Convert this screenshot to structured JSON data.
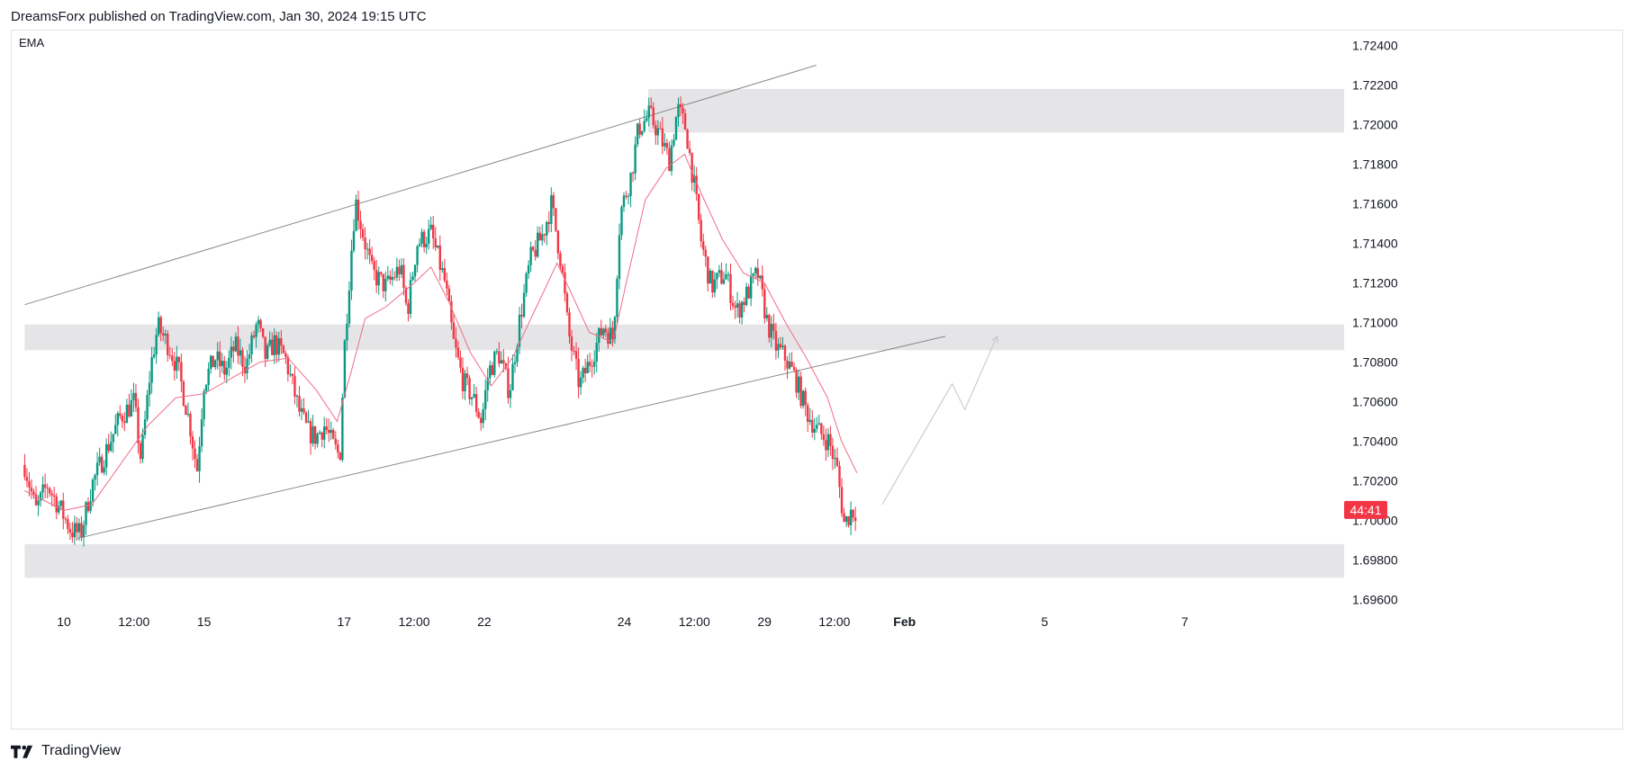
{
  "header": {
    "text": "DreamsForx published on TradingView.com, Jan 30, 2024 19:15 UTC"
  },
  "footer": {
    "brand": "TradingView",
    "logo_icon": "tradingview-logo-icon"
  },
  "colors": {
    "up": "#089981",
    "down": "#f23645",
    "ema": "#f06c88",
    "zone": "#e5e5e8",
    "trendline": "#8a8a8a",
    "projection": "#c4c4c4",
    "timer_bg": "#f23645"
  },
  "chart_data": {
    "type": "candlestick",
    "instrument": "",
    "indicator_label": "EMA",
    "y_axis": {
      "range": [
        1.695,
        1.725
      ],
      "ticks": [
        "1.72400",
        "1.72200",
        "1.72000",
        "1.71800",
        "1.71600",
        "1.71400",
        "1.71200",
        "1.71000",
        "1.70800",
        "1.70600",
        "1.70400",
        "1.70200",
        "1.70000",
        "1.69800",
        "1.69600"
      ]
    },
    "x_axis": {
      "labels": [
        {
          "text": "10",
          "t": 0.0,
          "bold": false
        },
        {
          "text": "12:00",
          "t": 0.5,
          "bold": false
        },
        {
          "text": "15",
          "t": 1.0,
          "bold": false
        },
        {
          "text": "17",
          "t": 2.0,
          "bold": false
        },
        {
          "text": "12:00",
          "t": 2.5,
          "bold": false
        },
        {
          "text": "22",
          "t": 3.0,
          "bold": false
        },
        {
          "text": "24",
          "t": 4.0,
          "bold": false
        },
        {
          "text": "12:00",
          "t": 4.5,
          "bold": false
        },
        {
          "text": "29",
          "t": 5.0,
          "bold": false
        },
        {
          "text": "12:00",
          "t": 5.5,
          "bold": false
        },
        {
          "text": "Feb",
          "t": 6.0,
          "bold": true
        },
        {
          "text": "5",
          "t": 7.0,
          "bold": false
        },
        {
          "text": "7",
          "t": 8.0,
          "bold": false
        }
      ],
      "range": [
        -0.28,
        8.0
      ]
    },
    "price_path": [
      [
        -0.28,
        1.7028
      ],
      [
        -0.2,
        1.7005
      ],
      [
        -0.12,
        1.7018
      ],
      [
        -0.02,
        1.7005
      ],
      [
        0.05,
        1.6995
      ],
      [
        0.12,
        1.6993
      ],
      [
        0.2,
        1.7018
      ],
      [
        0.3,
        1.7035
      ],
      [
        0.4,
        1.7052
      ],
      [
        0.5,
        1.706
      ],
      [
        0.55,
        1.703
      ],
      [
        0.62,
        1.7078
      ],
      [
        0.67,
        1.7098
      ],
      [
        0.75,
        1.7088
      ],
      [
        0.82,
        1.7075
      ],
      [
        0.9,
        1.7048
      ],
      [
        0.95,
        1.7025
      ],
      [
        1.0,
        1.707
      ],
      [
        1.08,
        1.7082
      ],
      [
        1.15,
        1.7075
      ],
      [
        1.22,
        1.7088
      ],
      [
        1.3,
        1.7078
      ],
      [
        1.38,
        1.71
      ],
      [
        1.44,
        1.7082
      ],
      [
        1.5,
        1.709
      ],
      [
        1.58,
        1.7082
      ],
      [
        1.68,
        1.7055
      ],
      [
        1.74,
        1.7045
      ],
      [
        1.8,
        1.7042
      ],
      [
        1.86,
        1.7048
      ],
      [
        1.92,
        1.7038
      ],
      [
        1.97,
        1.7032
      ],
      [
        2.0,
        1.7085
      ],
      [
        2.05,
        1.7135
      ],
      [
        2.08,
        1.7162
      ],
      [
        2.15,
        1.714
      ],
      [
        2.2,
        1.7125
      ],
      [
        2.3,
        1.7118
      ],
      [
        2.4,
        1.7128
      ],
      [
        2.45,
        1.7105
      ],
      [
        2.52,
        1.714
      ],
      [
        2.62,
        1.7145
      ],
      [
        2.72,
        1.712
      ],
      [
        2.78,
        1.709
      ],
      [
        2.85,
        1.707
      ],
      [
        2.92,
        1.7062
      ],
      [
        2.98,
        1.705
      ],
      [
        3.03,
        1.7075
      ],
      [
        3.1,
        1.7085
      ],
      [
        3.18,
        1.7065
      ],
      [
        3.25,
        1.71
      ],
      [
        3.33,
        1.7132
      ],
      [
        3.42,
        1.7145
      ],
      [
        3.48,
        1.716
      ],
      [
        3.55,
        1.713
      ],
      [
        3.6,
        1.7095
      ],
      [
        3.68,
        1.7068
      ],
      [
        3.78,
        1.7085
      ],
      [
        3.85,
        1.7098
      ],
      [
        3.92,
        1.7092
      ],
      [
        3.97,
        1.7155
      ],
      [
        4.05,
        1.7175
      ],
      [
        4.1,
        1.7198
      ],
      [
        4.18,
        1.7205
      ],
      [
        4.25,
        1.7195
      ],
      [
        4.32,
        1.7182
      ],
      [
        4.38,
        1.7208
      ],
      [
        4.44,
        1.7198
      ],
      [
        4.5,
        1.7168
      ],
      [
        4.55,
        1.714
      ],
      [
        4.62,
        1.7118
      ],
      [
        4.72,
        1.7125
      ],
      [
        4.8,
        1.7105
      ],
      [
        4.88,
        1.7115
      ],
      [
        4.95,
        1.7125
      ],
      [
        5.02,
        1.71
      ],
      [
        5.08,
        1.7088
      ],
      [
        5.15,
        1.7082
      ],
      [
        5.22,
        1.7072
      ],
      [
        5.3,
        1.7055
      ],
      [
        5.38,
        1.7045
      ],
      [
        5.46,
        1.704
      ],
      [
        5.52,
        1.7025
      ],
      [
        5.57,
        1.6998
      ],
      [
        5.62,
        1.7005
      ],
      [
        5.66,
        1.7005
      ]
    ],
    "ema_path": [
      [
        -0.28,
        1.7015
      ],
      [
        0.0,
        1.7005
      ],
      [
        0.2,
        1.7008
      ],
      [
        0.4,
        1.7028
      ],
      [
        0.6,
        1.7048
      ],
      [
        0.8,
        1.7062
      ],
      [
        1.0,
        1.7064
      ],
      [
        1.2,
        1.7072
      ],
      [
        1.4,
        1.708
      ],
      [
        1.6,
        1.7082
      ],
      [
        1.8,
        1.7066
      ],
      [
        1.95,
        1.705
      ],
      [
        2.05,
        1.7075
      ],
      [
        2.15,
        1.7102
      ],
      [
        2.3,
        1.7108
      ],
      [
        2.5,
        1.712
      ],
      [
        2.62,
        1.7128
      ],
      [
        2.75,
        1.711
      ],
      [
        2.9,
        1.7085
      ],
      [
        3.05,
        1.7068
      ],
      [
        3.2,
        1.7082
      ],
      [
        3.4,
        1.7112
      ],
      [
        3.52,
        1.713
      ],
      [
        3.62,
        1.7115
      ],
      [
        3.75,
        1.7095
      ],
      [
        3.92,
        1.709
      ],
      [
        4.02,
        1.7122
      ],
      [
        4.15,
        1.7162
      ],
      [
        4.3,
        1.7178
      ],
      [
        4.43,
        1.7185
      ],
      [
        4.55,
        1.7165
      ],
      [
        4.7,
        1.7142
      ],
      [
        4.85,
        1.7125
      ],
      [
        5.0,
        1.712
      ],
      [
        5.15,
        1.71
      ],
      [
        5.3,
        1.7082
      ],
      [
        5.45,
        1.7062
      ],
      [
        5.55,
        1.704
      ],
      [
        5.66,
        1.7024
      ]
    ],
    "zones": [
      {
        "y1": 1.7218,
        "y2": 1.7196,
        "t_start": 4.17
      },
      {
        "y1": 1.7099,
        "y2": 1.7086,
        "t_start": -0.28
      },
      {
        "y1": 1.6988,
        "y2": 1.6971,
        "t_start": -0.28
      }
    ],
    "trendlines": [
      {
        "from": [
          -0.28,
          1.7109
        ],
        "to": [
          5.37,
          1.723
        ]
      },
      {
        "from": [
          0.1,
          1.6991
        ],
        "to": [
          6.29,
          1.7093
        ]
      }
    ],
    "projection_path": [
      [
        5.84,
        1.7008
      ],
      [
        6.34,
        1.7069
      ],
      [
        6.43,
        1.7056
      ],
      [
        6.66,
        1.7093
      ]
    ],
    "last_price_timer": {
      "text": "44:41",
      "price": 1.70053
    }
  }
}
